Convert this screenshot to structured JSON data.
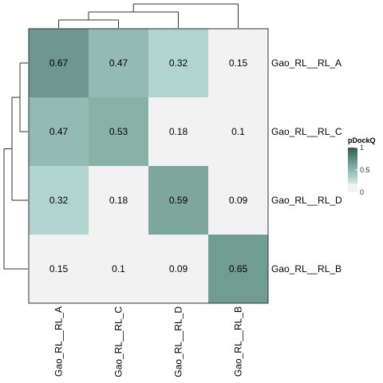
{
  "chart_data": {
    "type": "heatmap",
    "rows": [
      "Gao_RL__RL_A",
      "Gao_RL__RL_C",
      "Gao_RL__RL_D",
      "Gao_RL__RL_B"
    ],
    "columns": [
      "Gao_RL__RL_A",
      "Gao_RL__RL_C",
      "Gao_RL__RL_D",
      "Gao_RL__RL_B"
    ],
    "values": [
      [
        0.67,
        0.47,
        0.32,
        0.15
      ],
      [
        0.47,
        0.53,
        0.18,
        0.1
      ],
      [
        0.32,
        0.18,
        0.59,
        0.09
      ],
      [
        0.15,
        0.1,
        0.09,
        0.65
      ]
    ],
    "legend": {
      "title": "pDockQ",
      "ticks": [
        "1",
        "0.5",
        "0"
      ],
      "range": [
        0,
        1
      ],
      "placement": "right"
    },
    "colors": {
      "low": "#f2f2f2",
      "threshold": 0.2,
      "mid_start": "#c8eae4",
      "high": "#2e5f53"
    },
    "dendrogram": {
      "row_merges": [
        [
          "Gao_RL__RL_A",
          "Gao_RL__RL_C"
        ],
        [
          "A-C",
          "Gao_RL__RL_D"
        ],
        [
          "A-C-D",
          "Gao_RL__RL_B"
        ]
      ],
      "column_merges": [
        [
          "Gao_RL__RL_A",
          "Gao_RL__RL_C"
        ],
        [
          "A-C",
          "Gao_RL__RL_D"
        ],
        [
          "A-C-D",
          "Gao_RL__RL_B"
        ]
      ]
    }
  }
}
